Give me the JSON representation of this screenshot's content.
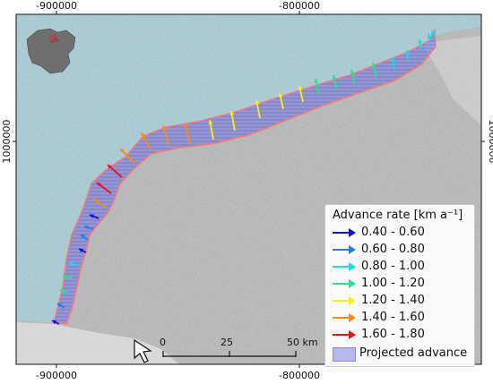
{
  "map": {
    "x_ticks": [
      "-900000",
      "-800000"
    ],
    "y_ticks": [
      "1000000"
    ],
    "colors": {
      "ocean": "#a9cdd7",
      "terrain": "#b7b7b7",
      "projected_advance": "#8c8ce6",
      "front_outline": "#f07b7b"
    },
    "scale_bar": {
      "labels": [
        "0",
        "25",
        "50 km"
      ]
    },
    "north_arrow": "north-arrow-icon",
    "inset": {
      "description_icon": "antarctica-locator-icon"
    }
  },
  "legend": {
    "title": "Advance rate [km a⁻¹]",
    "classes": [
      {
        "label": "0.40 - 0.60",
        "color": "#1010e0"
      },
      {
        "label": "0.60 - 0.80",
        "color": "#1a7ff5"
      },
      {
        "label": "0.80 - 1.00",
        "color": "#00e5ee"
      },
      {
        "label": "1.00 - 1.20",
        "color": "#1ee88a"
      },
      {
        "label": "1.20 - 1.40",
        "color": "#f4f40a"
      },
      {
        "label": "1.40 - 1.60",
        "color": "#ff8a10"
      },
      {
        "label": "1.60 - 1.80",
        "color": "#ee1111"
      }
    ],
    "projected_label": "Projected advance"
  },
  "arrows": [
    {
      "cls": 0
    },
    {
      "cls": 1
    },
    {
      "cls": 3
    },
    {
      "cls": 3
    },
    {
      "cls": 2
    },
    {
      "cls": 0
    },
    {
      "cls": 1
    },
    {
      "cls": 1
    },
    {
      "cls": 0
    },
    {
      "cls": 5
    },
    {
      "cls": 6
    },
    {
      "cls": 6
    },
    {
      "cls": 5
    },
    {
      "cls": 5
    },
    {
      "cls": 5
    },
    {
      "cls": 5
    },
    {
      "cls": 4
    },
    {
      "cls": 4
    },
    {
      "cls": 4
    },
    {
      "cls": 4
    },
    {
      "cls": 4
    },
    {
      "cls": 3
    },
    {
      "cls": 3
    },
    {
      "cls": 3
    },
    {
      "cls": 3
    },
    {
      "cls": 2
    },
    {
      "cls": 2
    },
    {
      "cls": 2
    },
    {
      "cls": 2
    },
    {
      "cls": 2
    }
  ]
}
